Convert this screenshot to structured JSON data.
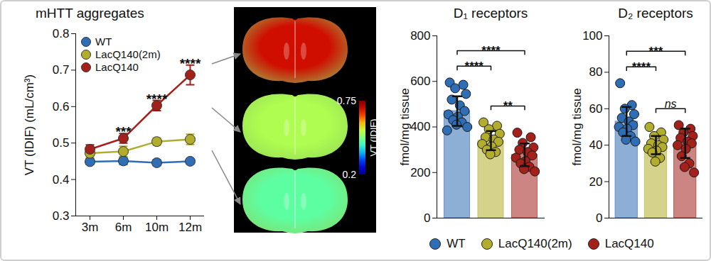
{
  "chart_data": [
    {
      "type": "line",
      "title": "mHTT aggregates",
      "y_label": "VT (IDIF) (mL/cm³)",
      "categories": [
        "3m",
        "6m",
        "10m",
        "12m"
      ],
      "series": [
        {
          "name": "WT",
          "color": "#2f6db5",
          "marker": "circle",
          "values": [
            0.449,
            0.451,
            0.446,
            0.45
          ],
          "errors": [
            0.008,
            0.01,
            0.008,
            0.007
          ]
        },
        {
          "name": "LacQ140(2m)",
          "color": "#b3ad2e",
          "marker": "circle",
          "values": [
            0.472,
            0.477,
            0.504,
            0.51
          ],
          "errors": [
            0.012,
            0.014,
            0.01,
            0.014
          ]
        },
        {
          "name": "LacQ140",
          "color": "#a3201b",
          "marker": "circle",
          "values": [
            0.483,
            0.513,
            0.603,
            0.687
          ],
          "errors": [
            0.012,
            0.013,
            0.014,
            0.027
          ]
        }
      ],
      "ylim": [
        0.3,
        0.8
      ],
      "yticks": [
        0.3,
        0.4,
        0.5,
        0.6,
        0.7,
        0.8
      ],
      "grid": false,
      "legend": "top-left",
      "annotations": [
        {
          "x": "6m",
          "text": "***"
        },
        {
          "x": "10m",
          "text": "****"
        },
        {
          "x": "12m",
          "text": "****"
        }
      ]
    },
    {
      "type": "image",
      "colorbar": {
        "label": "VT (IDIF)",
        "range": [
          0.2,
          0.75
        ],
        "ticks": [
          0.2,
          0.75
        ]
      }
    },
    {
      "type": "bar",
      "title": "D₁ receptors",
      "y_label": "fmol/mg tissue",
      "categories": [
        "WT",
        "LacQ140(2m)",
        "LacQ140"
      ],
      "values": [
        470,
        340,
        278
      ],
      "errors": [
        65,
        42,
        50
      ],
      "points": [
        [
          595,
          585,
          570,
          545,
          520,
          495,
          470,
          455,
          445,
          430,
          420,
          410,
          400,
          385
        ],
        [
          420,
          405,
          390,
          370,
          355,
          345,
          335,
          325,
          315,
          300,
          290,
          280
        ],
        [
          375,
          355,
          330,
          310,
          300,
          290,
          275,
          265,
          250,
          240,
          225,
          215,
          205
        ]
      ],
      "colors": [
        "#2f6db5",
        "#b3ad2e",
        "#a3201b"
      ],
      "ylim": [
        0,
        800
      ],
      "yticks": [
        0,
        200,
        400,
        600,
        800
      ],
      "tick_labels": "y",
      "legend": "bottom",
      "comparisons": [
        {
          "from": "WT",
          "to": "LacQ140(2m)",
          "label": "****"
        },
        {
          "from": "WT",
          "to": "LacQ140",
          "label": "****"
        },
        {
          "from": "LacQ140(2m)",
          "to": "LacQ140",
          "label": "**"
        }
      ]
    },
    {
      "type": "bar",
      "title": "D₂ receptors",
      "y_label": "fmol/mg tissue",
      "categories": [
        "WT",
        "LacQ140(2m)",
        "LacQ140"
      ],
      "values": [
        53,
        40,
        41
      ],
      "errors": [
        8,
        5,
        8
      ],
      "points": [
        [
          74,
          62,
          60,
          57,
          55,
          53,
          51,
          50,
          49,
          47,
          45,
          43,
          42
        ],
        [
          50,
          47,
          45,
          43,
          41,
          40,
          39,
          38,
          37,
          36,
          33,
          31
        ],
        [
          51,
          49,
          47,
          45,
          44,
          42,
          41,
          40,
          38,
          34,
          30,
          28,
          25
        ]
      ],
      "colors": [
        "#2f6db5",
        "#b3ad2e",
        "#a3201b"
      ],
      "ylim": [
        0,
        100
      ],
      "yticks": [
        0,
        20,
        40,
        60,
        80,
        100
      ],
      "tick_labels": "y",
      "comparisons": [
        {
          "from": "WT",
          "to": "LacQ140(2m)",
          "label": "****"
        },
        {
          "from": "WT",
          "to": "LacQ140",
          "label": "***"
        },
        {
          "from": "LacQ140(2m)",
          "to": "LacQ140",
          "label": "ns"
        }
      ]
    }
  ]
}
